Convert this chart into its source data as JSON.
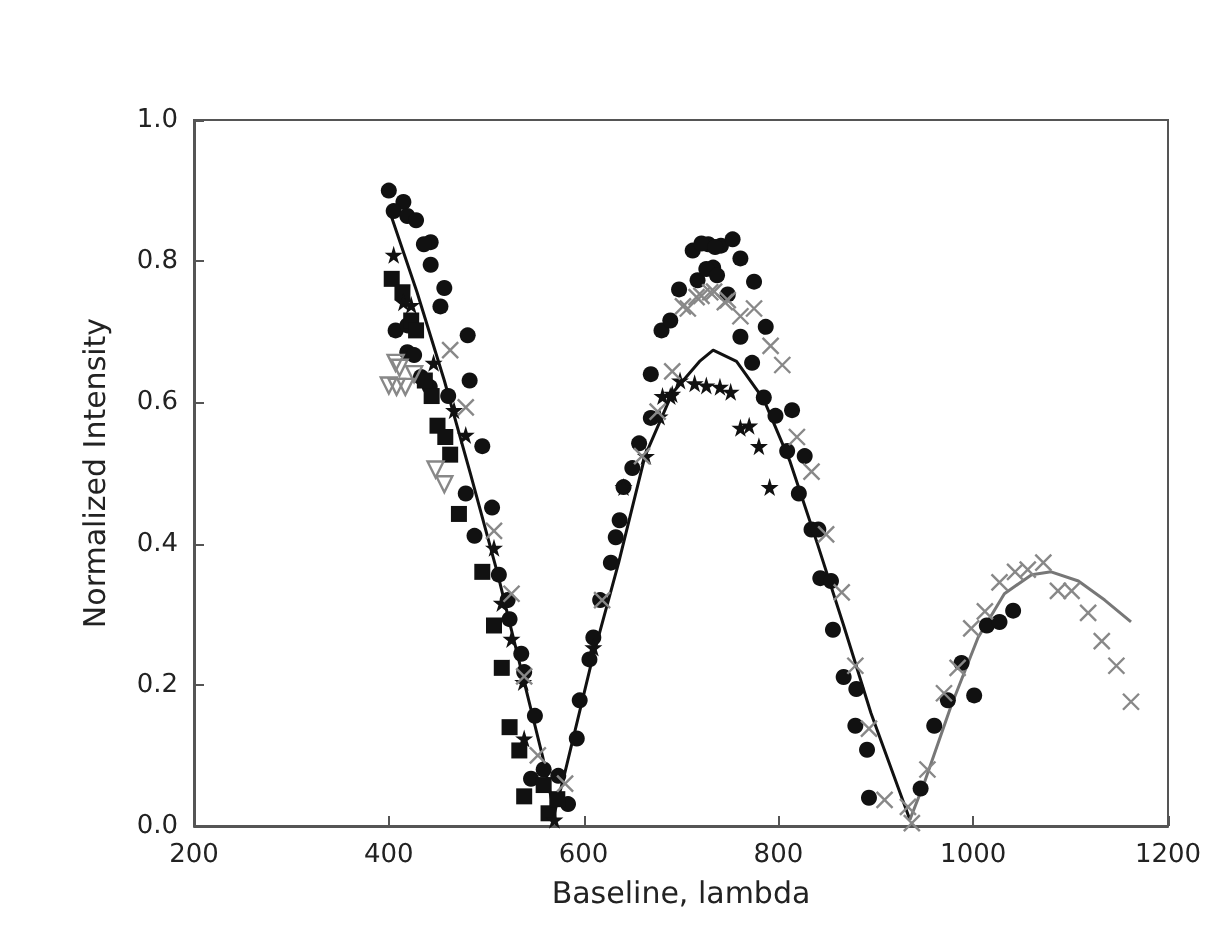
{
  "chart_data": {
    "type": "scatter",
    "xlabel": "Baseline, lambda",
    "ylabel": "Normalized Intensity",
    "xlim": [
      200,
      1200
    ],
    "xticks": [
      200,
      400,
      600,
      800,
      1000,
      1200
    ],
    "ylim": [
      0,
      1
    ],
    "yticks": [
      {
        "value": 0,
        "label": "0.0"
      },
      0.2,
      0.4,
      0.6,
      0.8,
      {
        "value": 1,
        "label": "1.0"
      }
    ],
    "grid": false,
    "series": [
      {
        "marker": "circle",
        "color": "#111111",
        "x": [
          400,
          415,
          405,
          419,
          428,
          443,
          436,
          443,
          457,
          453,
          407,
          419,
          481,
          419,
          426,
          433,
          442,
          461,
          483,
          496,
          479,
          506,
          488,
          513,
          522,
          524,
          536,
          539,
          550,
          546,
          559,
          574,
          584,
          593,
          596,
          606,
          610,
          617,
          628,
          633,
          637,
          641,
          650,
          657,
          669,
          669,
          680,
          689,
          698,
          717,
          733,
          712,
          728,
          741,
          753,
          721,
          735,
          761,
          726,
          737,
          748,
          775,
          787,
          761,
          773,
          785,
          797,
          814,
          809,
          827,
          821,
          834,
          841,
          843,
          854,
          856,
          867,
          880,
          879,
          891,
          893,
          946,
          960,
          974,
          988,
          1001,
          1014,
          1027,
          1041
        ],
        "values": [
          0.9,
          0.884,
          0.871,
          0.864,
          0.858,
          0.827,
          0.824,
          0.795,
          0.762,
          0.736,
          0.702,
          0.709,
          0.695,
          0.671,
          0.667,
          0.636,
          0.622,
          0.609,
          0.631,
          0.538,
          0.471,
          0.451,
          0.411,
          0.356,
          0.32,
          0.293,
          0.244,
          0.218,
          0.156,
          0.067,
          0.08,
          0.071,
          0.031,
          0.124,
          0.178,
          0.236,
          0.267,
          0.32,
          0.373,
          0.409,
          0.433,
          0.48,
          0.507,
          0.542,
          0.578,
          0.64,
          0.702,
          0.716,
          0.76,
          0.773,
          0.791,
          0.815,
          0.824,
          0.822,
          0.831,
          0.825,
          0.82,
          0.804,
          0.789,
          0.78,
          0.753,
          0.771,
          0.707,
          0.693,
          0.656,
          0.607,
          0.581,
          0.589,
          0.531,
          0.524,
          0.471,
          0.42,
          0.42,
          0.351,
          0.347,
          0.278,
          0.211,
          0.194,
          0.142,
          0.108,
          0.04,
          0.053,
          0.142,
          0.178,
          0.231,
          0.185,
          0.284,
          0.289,
          0.305
        ]
      },
      {
        "marker": "square",
        "color": "#111111",
        "x": [
          403,
          414,
          423,
          428,
          437,
          444,
          450,
          458,
          463,
          472,
          496,
          508,
          516,
          524,
          534,
          539,
          559,
          564,
          573
        ],
        "values": [
          0.775,
          0.756,
          0.716,
          0.702,
          0.631,
          0.609,
          0.567,
          0.551,
          0.526,
          0.442,
          0.36,
          0.284,
          0.224,
          0.14,
          0.107,
          0.042,
          0.058,
          0.018,
          0.038
        ]
      },
      {
        "marker": "star",
        "color": "#111111",
        "x": [
          405,
          446,
          415,
          423,
          467,
          479,
          508,
          516,
          526,
          538,
          539,
          570,
          610,
          641,
          664,
          681,
          691,
          699,
          714,
          726,
          740,
          751,
          689,
          678,
          761,
          770,
          780,
          791
        ],
        "values": [
          0.809,
          0.656,
          0.742,
          0.738,
          0.589,
          0.554,
          0.394,
          0.316,
          0.265,
          0.204,
          0.124,
          0.009,
          0.253,
          0.48,
          0.524,
          0.609,
          0.612,
          0.631,
          0.627,
          0.624,
          0.622,
          0.615,
          0.609,
          0.58,
          0.564,
          0.567,
          0.538,
          0.48
        ]
      },
      {
        "marker": "triangle",
        "color": "#888888",
        "x": [
          400,
          408,
          417,
          407,
          411,
          426,
          448,
          457
        ],
        "values": [
          0.624,
          0.622,
          0.622,
          0.656,
          0.649,
          0.64,
          0.505,
          0.484
        ]
      },
      {
        "marker": "cross",
        "color": "#888888",
        "x": [
          463,
          479,
          508,
          526,
          539,
          553,
          581,
          619,
          660,
          676,
          691,
          707,
          721,
          734,
          748,
          702,
          716,
          730,
          745,
          761,
          775,
          792,
          804,
          819,
          834,
          849,
          865,
          879,
          893,
          909,
          933,
          937,
          953,
          970,
          984,
          998,
          1012,
          1027,
          1043,
          1056,
          1072,
          1087,
          1101,
          1118,
          1132,
          1147,
          1162
        ],
        "values": [
          0.674,
          0.593,
          0.418,
          0.329,
          0.212,
          0.1,
          0.06,
          0.32,
          0.524,
          0.587,
          0.644,
          0.733,
          0.751,
          0.757,
          0.745,
          0.736,
          0.749,
          0.756,
          0.742,
          0.722,
          0.733,
          0.68,
          0.653,
          0.551,
          0.502,
          0.413,
          0.331,
          0.227,
          0.138,
          0.037,
          0.027,
          0.004,
          0.08,
          0.188,
          0.224,
          0.28,
          0.304,
          0.345,
          0.36,
          0.363,
          0.373,
          0.333,
          0.333,
          0.302,
          0.262,
          0.227,
          0.176
        ]
      },
      {
        "type": "line",
        "marker": "none",
        "line_style": "solid",
        "color": "#111111",
        "x": [
          403,
          429,
          457,
          484,
          512,
          539,
          558,
          570,
          580,
          608,
          636,
          663,
          691,
          719,
          733,
          757,
          785,
          812,
          840,
          867,
          895,
          935
        ],
        "values": [
          0.862,
          0.756,
          0.631,
          0.498,
          0.356,
          0.204,
          0.098,
          0.018,
          0.071,
          0.231,
          0.373,
          0.524,
          0.613,
          0.658,
          0.674,
          0.658,
          0.604,
          0.516,
          0.4,
          0.284,
          0.16,
          0.009
        ]
      },
      {
        "type": "line",
        "marker": "none",
        "line_style": "solid",
        "color": "#777777",
        "x": [
          935,
          950,
          977,
          1005,
          1032,
          1060,
          1080,
          1108,
          1135,
          1162
        ],
        "values": [
          0.009,
          0.062,
          0.169,
          0.267,
          0.329,
          0.356,
          0.36,
          0.347,
          0.32,
          0.289
        ]
      }
    ]
  }
}
